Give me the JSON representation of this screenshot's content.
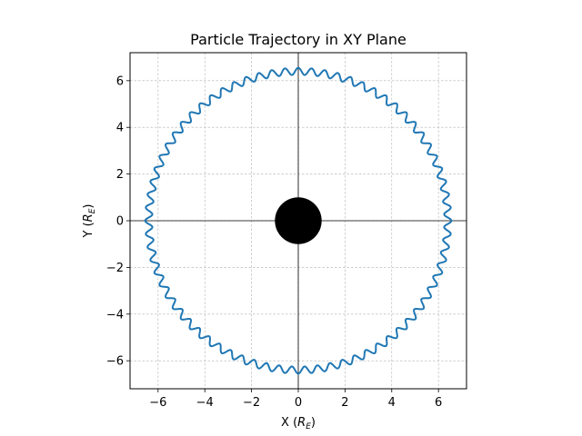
{
  "chart_data": {
    "type": "line",
    "title": "Particle Trajectory in XY Plane",
    "xlabel": {
      "prefix": "X (",
      "var": "R",
      "sub": "E",
      "suffix": ")"
    },
    "ylabel": {
      "prefix": "Y (",
      "var": "R",
      "sub": "E",
      "suffix": ")"
    },
    "xlim": [
      -7.2,
      7.2
    ],
    "ylim": [
      -7.2,
      7.2
    ],
    "xticks": [
      -6,
      -4,
      -2,
      0,
      2,
      4,
      6
    ],
    "yticks": [
      -6,
      -4,
      -2,
      0,
      2,
      4,
      6
    ],
    "xtick_labels": [
      "−6",
      "−4",
      "−2",
      "0",
      "2",
      "4",
      "6"
    ],
    "ytick_labels": [
      "−6",
      "−4",
      "−2",
      "0",
      "2",
      "4",
      "6"
    ],
    "grid": true,
    "zero_lines": true,
    "series": [
      {
        "kind": "trajectory",
        "color": "#1f77b4",
        "mean_radius": 6.4,
        "gyration_radius": 0.15,
        "gyration_loops": 72
      }
    ],
    "earth": {
      "center": [
        0,
        0
      ],
      "radius": 1.0,
      "color": "#000000"
    }
  }
}
